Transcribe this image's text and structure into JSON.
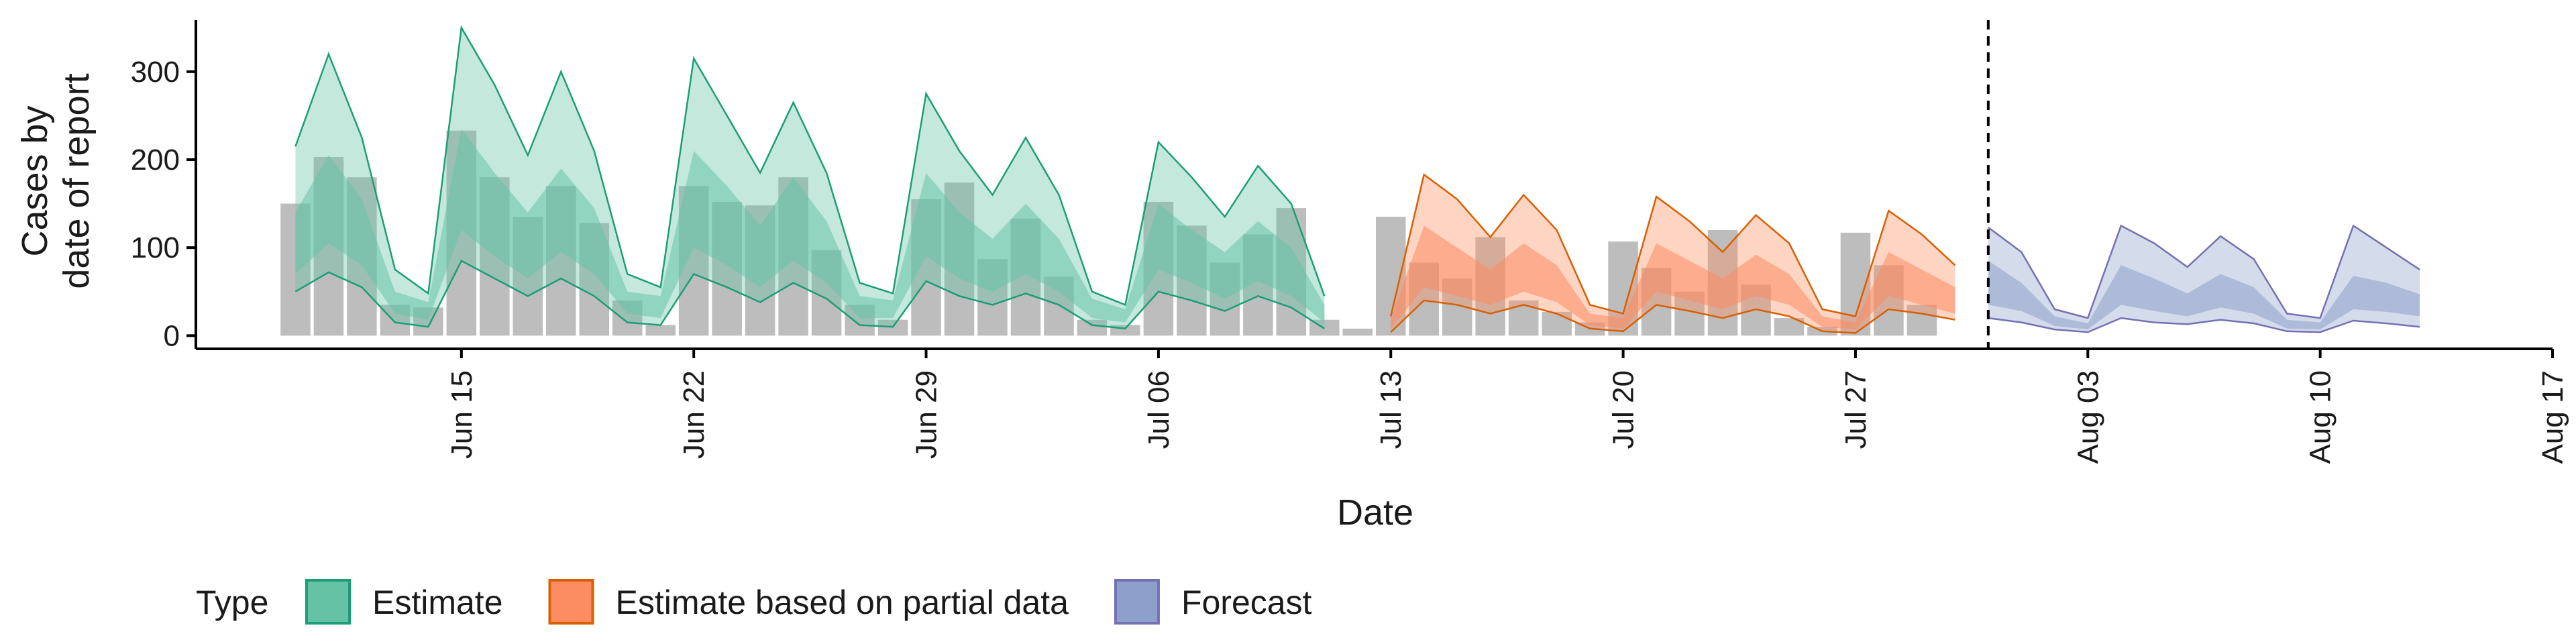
{
  "chart_data": {
    "type": "area",
    "xlabel": "Date",
    "ylabel": [
      "Cases by",
      "date of report"
    ],
    "x_domain": [
      "2020-06-07",
      "2020-08-17"
    ],
    "x_ticks": [
      {
        "date": "2020-06-15",
        "label": "Jun 15"
      },
      {
        "date": "2020-06-22",
        "label": "Jun 22"
      },
      {
        "date": "2020-06-29",
        "label": "Jun 29"
      },
      {
        "date": "2020-07-06",
        "label": "Jul 06"
      },
      {
        "date": "2020-07-13",
        "label": "Jul 13"
      },
      {
        "date": "2020-07-20",
        "label": "Jul 20"
      },
      {
        "date": "2020-07-27",
        "label": "Jul 27"
      },
      {
        "date": "2020-08-03",
        "label": "Aug 03"
      },
      {
        "date": "2020-08-10",
        "label": "Aug 10"
      },
      {
        "date": "2020-08-17",
        "label": "Aug 17"
      }
    ],
    "y_ticks": [
      0,
      100,
      200,
      300
    ],
    "ylim": [
      -15,
      370
    ],
    "vline_date": "2020-07-31",
    "legend": {
      "title": "Type",
      "placement": "bottom",
      "entries": [
        {
          "key": "estimate",
          "label": "Estimate"
        },
        {
          "key": "partial",
          "label": "Estimate based on partial data"
        },
        {
          "key": "forecast",
          "label": "Forecast"
        }
      ]
    },
    "colors": {
      "estimate_fill": "#66c2a5",
      "estimate_line": "#1b9e77",
      "partial_fill": "#fc8d62",
      "partial_line": "#d95f02",
      "forecast_fill": "#8da0cb",
      "forecast_line": "#7570b3",
      "bar": "#bdbdbd"
    },
    "bars": {
      "start_date": "2020-06-10",
      "values": [
        150,
        203,
        180,
        35,
        32,
        233,
        180,
        135,
        170,
        128,
        40,
        12,
        170,
        152,
        148,
        180,
        97,
        35,
        18,
        155,
        174,
        87,
        133,
        67,
        18,
        12,
        152,
        125,
        83,
        115,
        145,
        18,
        8,
        135,
        83,
        65,
        112,
        40,
        27,
        15,
        107,
        77,
        50,
        120,
        58,
        20,
        10,
        117,
        80,
        35
      ]
    },
    "series": [
      {
        "key": "estimate",
        "start_date": "2020-06-10",
        "upper90": [
          215,
          320,
          225,
          75,
          48,
          350,
          285,
          205,
          300,
          210,
          70,
          55,
          315,
          250,
          185,
          265,
          185,
          60,
          48,
          275,
          210,
          160,
          225,
          160,
          50,
          35,
          220,
          180,
          135,
          193,
          150,
          45
        ],
        "upper50": [
          140,
          205,
          155,
          50,
          38,
          235,
          185,
          140,
          190,
          145,
          50,
          45,
          210,
          170,
          125,
          180,
          130,
          45,
          40,
          185,
          140,
          110,
          150,
          110,
          42,
          30,
          150,
          120,
          95,
          130,
          100,
          35
        ],
        "median": [
          90,
          140,
          100,
          35,
          25,
          160,
          120,
          90,
          125,
          95,
          35,
          30,
          140,
          110,
          75,
          115,
          85,
          30,
          28,
          120,
          90,
          70,
          95,
          70,
          28,
          22,
          100,
          80,
          60,
          85,
          65,
          25
        ],
        "lower50": [
          70,
          105,
          80,
          25,
          18,
          120,
          90,
          65,
          95,
          70,
          25,
          20,
          100,
          80,
          55,
          85,
          60,
          20,
          20,
          90,
          65,
          50,
          70,
          50,
          20,
          15,
          75,
          60,
          42,
          62,
          45,
          15
        ],
        "lower90": [
          50,
          72,
          55,
          15,
          10,
          85,
          65,
          45,
          65,
          45,
          15,
          12,
          70,
          55,
          38,
          60,
          42,
          12,
          10,
          62,
          45,
          35,
          48,
          35,
          12,
          8,
          50,
          40,
          28,
          45,
          32,
          8
        ]
      },
      {
        "key": "partial",
        "start_date": "2020-07-13",
        "upper90": [
          22,
          183,
          155,
          112,
          160,
          120,
          35,
          25,
          158,
          130,
          95,
          137,
          105,
          30,
          22,
          142,
          115,
          80
        ],
        "upper50": [
          18,
          125,
          100,
          75,
          105,
          80,
          25,
          20,
          105,
          85,
          65,
          92,
          70,
          22,
          15,
          95,
          75,
          55
        ],
        "median": [
          12,
          90,
          70,
          52,
          75,
          55,
          18,
          14,
          75,
          60,
          45,
          65,
          50,
          15,
          10,
          65,
          52,
          38
        ],
        "lower50": [
          8,
          55,
          45,
          35,
          50,
          38,
          12,
          8,
          50,
          40,
          30,
          45,
          35,
          10,
          7,
          45,
          35,
          25
        ],
        "lower90": [
          4,
          40,
          35,
          25,
          35,
          25,
          8,
          5,
          35,
          28,
          20,
          30,
          22,
          5,
          3,
          30,
          25,
          18
        ]
      },
      {
        "key": "forecast",
        "start_date": "2020-07-31",
        "upper90": [
          123,
          95,
          30,
          20,
          125,
          105,
          78,
          113,
          87,
          25,
          20,
          125,
          100,
          75
        ],
        "upper50": [
          85,
          60,
          22,
          14,
          80,
          65,
          48,
          70,
          55,
          18,
          15,
          68,
          60,
          47
        ],
        "median": [
          55,
          42,
          16,
          10,
          55,
          45,
          32,
          48,
          38,
          12,
          10,
          47,
          42,
          35
        ],
        "lower50": [
          35,
          28,
          11,
          7,
          35,
          28,
          22,
          32,
          25,
          8,
          7,
          30,
          27,
          22
        ],
        "lower90": [
          20,
          15,
          7,
          4,
          20,
          15,
          13,
          18,
          14,
          5,
          4,
          17,
          14,
          10
        ]
      }
    ]
  }
}
